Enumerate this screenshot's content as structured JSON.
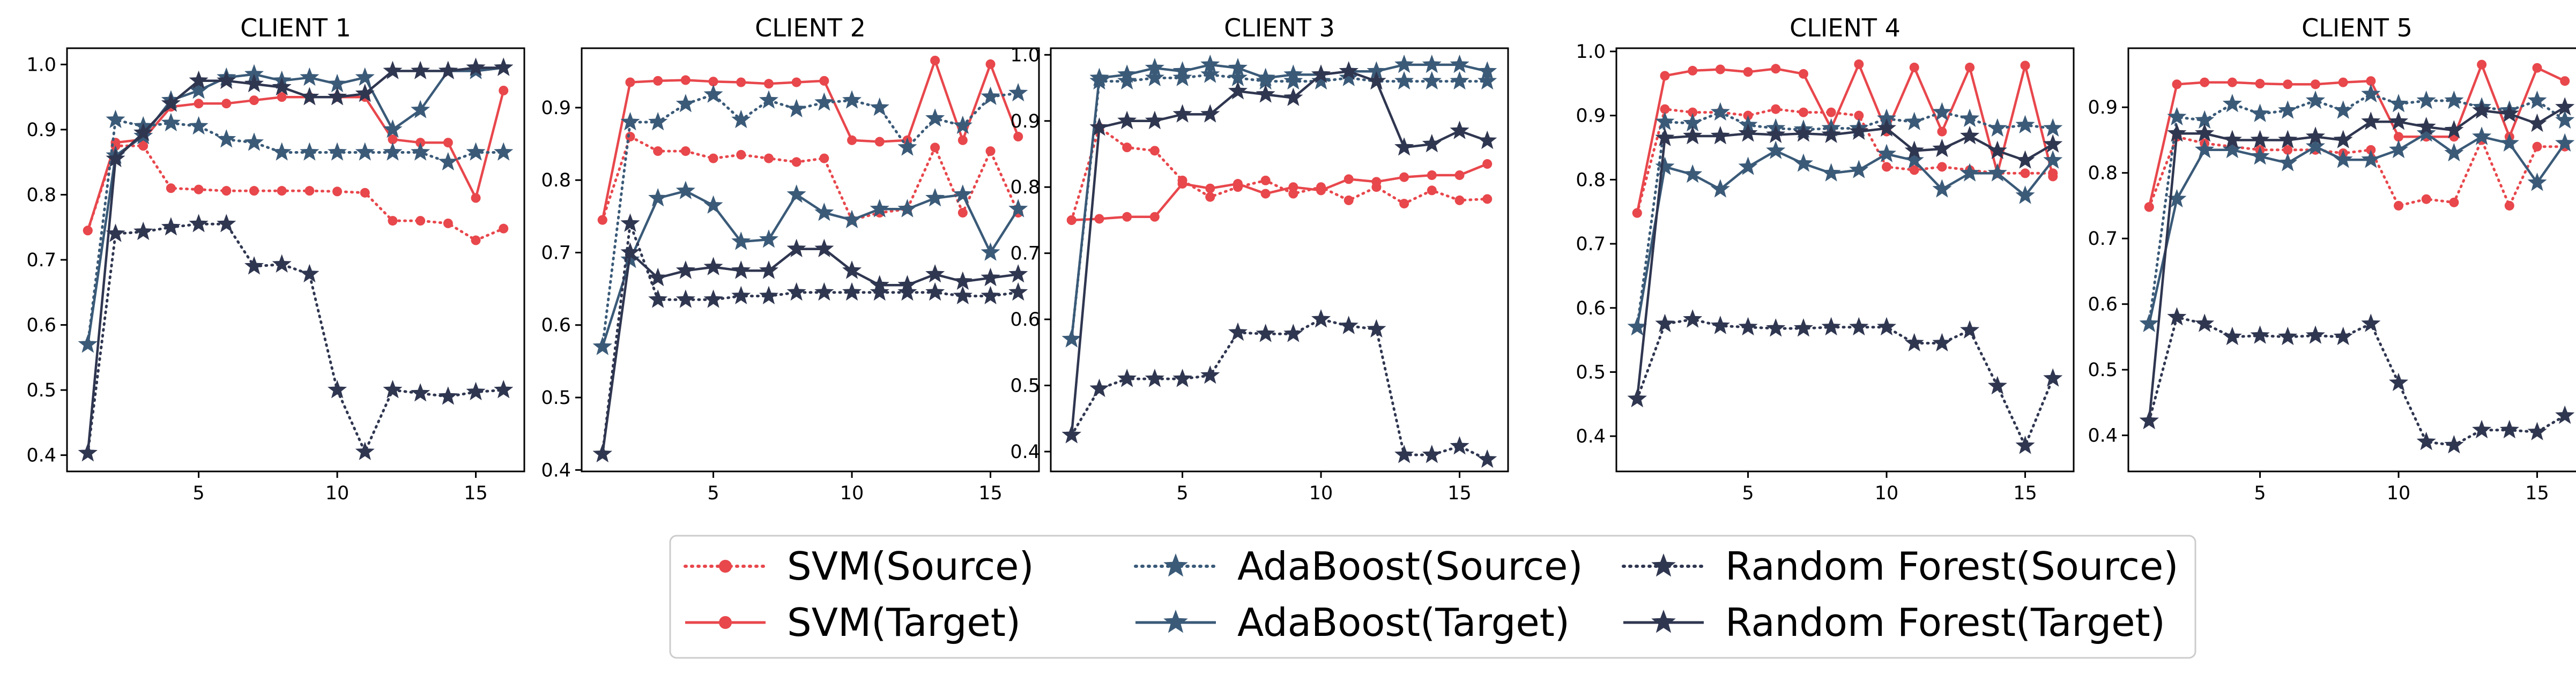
{
  "colors": {
    "svm": "#e8474c",
    "adaboost": "#3a5a78",
    "rf": "#2f3650",
    "legend_border": "#cccccc"
  },
  "chart_data": [
    {
      "type": "line",
      "title": "CLIENT 1",
      "x": [
        1,
        2,
        3,
        4,
        5,
        6,
        7,
        8,
        9,
        10,
        11,
        12,
        13,
        14,
        15,
        16
      ],
      "xticks": [
        5,
        10,
        15
      ],
      "yticks": [
        0.4,
        0.5,
        0.6,
        0.7,
        0.8,
        0.9,
        1.0
      ],
      "ylim": [
        0.375,
        1.025
      ],
      "xlim": [
        0.25,
        16.75
      ],
      "series": [
        {
          "name": "SVM(Source)",
          "model": "svm",
          "style": "dotted",
          "marker": "circle",
          "values": [
            0.745,
            0.875,
            0.875,
            0.81,
            0.808,
            0.806,
            0.806,
            0.806,
            0.806,
            0.805,
            0.803,
            0.76,
            0.76,
            0.756,
            0.73,
            0.748
          ]
        },
        {
          "name": "SVM(Target)",
          "model": "svm",
          "style": "solid",
          "marker": "circle",
          "values": [
            0.745,
            0.88,
            0.885,
            0.935,
            0.94,
            0.94,
            0.945,
            0.95,
            0.95,
            0.95,
            0.95,
            0.885,
            0.88,
            0.88,
            0.795,
            0.96
          ]
        },
        {
          "name": "AdaBoost(Source)",
          "model": "adaboost",
          "style": "dotted",
          "marker": "star",
          "values": [
            0.57,
            0.915,
            0.905,
            0.91,
            0.905,
            0.885,
            0.88,
            0.865,
            0.865,
            0.865,
            0.865,
            0.865,
            0.865,
            0.85,
            0.865,
            0.865
          ]
        },
        {
          "name": "AdaBoost(Target)",
          "model": "adaboost",
          "style": "solid",
          "marker": "star",
          "values": [
            0.57,
            0.86,
            0.89,
            0.945,
            0.96,
            0.98,
            0.985,
            0.975,
            0.98,
            0.97,
            0.98,
            0.9,
            0.93,
            0.99,
            0.99,
            0.995
          ]
        },
        {
          "name": "Random Forest(Source)",
          "model": "rf",
          "style": "dotted",
          "marker": "star",
          "values": [
            0.403,
            0.74,
            0.743,
            0.75,
            0.755,
            0.755,
            0.69,
            0.693,
            0.678,
            0.5,
            0.405,
            0.5,
            0.495,
            0.49,
            0.497,
            0.5
          ]
        },
        {
          "name": "Random Forest(Target)",
          "model": "rf",
          "style": "solid",
          "marker": "star",
          "values": [
            0.403,
            0.855,
            0.895,
            0.94,
            0.975,
            0.975,
            0.97,
            0.965,
            0.95,
            0.95,
            0.955,
            0.99,
            0.99,
            0.99,
            0.995,
            0.995
          ]
        }
      ]
    },
    {
      "type": "line",
      "title": "CLIENT 2",
      "x": [
        1,
        2,
        3,
        4,
        5,
        6,
        7,
        8,
        9,
        10,
        11,
        12,
        13,
        14,
        15,
        16
      ],
      "xticks": [
        5,
        10,
        15
      ],
      "yticks": [
        0.4,
        0.5,
        0.6,
        0.7,
        0.8,
        0.9
      ],
      "ylim": [
        0.398,
        0.982
      ],
      "xlim": [
        0.25,
        16.75
      ],
      "series": [
        {
          "name": "SVM(Source)",
          "model": "svm",
          "style": "dotted",
          "marker": "circle",
          "values": [
            0.745,
            0.86,
            0.84,
            0.84,
            0.83,
            0.835,
            0.83,
            0.825,
            0.83,
            0.745,
            0.755,
            0.76,
            0.845,
            0.755,
            0.84,
            0.755
          ]
        },
        {
          "name": "SVM(Target)",
          "model": "svm",
          "style": "solid",
          "marker": "circle",
          "values": [
            0.745,
            0.935,
            0.937,
            0.938,
            0.936,
            0.935,
            0.933,
            0.935,
            0.937,
            0.855,
            0.853,
            0.855,
            0.965,
            0.855,
            0.96,
            0.86
          ]
        },
        {
          "name": "AdaBoost(Source)",
          "model": "adaboost",
          "style": "dotted",
          "marker": "star",
          "values": [
            0.57,
            0.88,
            0.88,
            0.905,
            0.918,
            0.883,
            0.91,
            0.898,
            0.907,
            0.91,
            0.9,
            0.845,
            0.885,
            0.875,
            0.915,
            0.92
          ]
        },
        {
          "name": "AdaBoost(Target)",
          "model": "adaboost",
          "style": "solid",
          "marker": "star",
          "values": [
            0.57,
            0.69,
            0.775,
            0.785,
            0.765,
            0.715,
            0.718,
            0.78,
            0.755,
            0.745,
            0.76,
            0.76,
            0.775,
            0.78,
            0.7,
            0.76
          ]
        },
        {
          "name": "Random Forest(Source)",
          "model": "rf",
          "style": "dotted",
          "marker": "star",
          "values": [
            0.422,
            0.74,
            0.635,
            0.635,
            0.635,
            0.64,
            0.64,
            0.645,
            0.645,
            0.645,
            0.645,
            0.645,
            0.645,
            0.64,
            0.64,
            0.645
          ]
        },
        {
          "name": "Random Forest(Target)",
          "model": "rf",
          "style": "solid",
          "marker": "star",
          "values": [
            0.422,
            0.7,
            0.665,
            0.675,
            0.68,
            0.675,
            0.675,
            0.705,
            0.705,
            0.675,
            0.655,
            0.655,
            0.67,
            0.66,
            0.665,
            0.67
          ]
        }
      ]
    },
    {
      "type": "line",
      "title": "CLIENT 3",
      "x": [
        1,
        2,
        3,
        4,
        5,
        6,
        7,
        8,
        9,
        10,
        11,
        12,
        13,
        14,
        15,
        16
      ],
      "xticks": [
        5,
        10,
        15
      ],
      "yticks": [
        0.4,
        0.5,
        0.6,
        0.7,
        0.8,
        0.9,
        1.0
      ],
      "ylim": [
        0.37,
        1.01
      ],
      "xlim": [
        0.25,
        16.75
      ],
      "series": [
        {
          "name": "SVM(Source)",
          "model": "svm",
          "style": "dotted",
          "marker": "circle",
          "values": [
            0.75,
            0.89,
            0.86,
            0.855,
            0.81,
            0.785,
            0.8,
            0.81,
            0.79,
            0.8,
            0.78,
            0.8,
            0.775,
            0.795,
            0.78,
            0.782
          ]
        },
        {
          "name": "SVM(Target)",
          "model": "svm",
          "style": "solid",
          "marker": "circle",
          "values": [
            0.75,
            0.752,
            0.755,
            0.755,
            0.805,
            0.798,
            0.805,
            0.79,
            0.8,
            0.795,
            0.812,
            0.808,
            0.815,
            0.818,
            0.818,
            0.835
          ]
        },
        {
          "name": "AdaBoost(Source)",
          "model": "adaboost",
          "style": "dotted",
          "marker": "star",
          "values": [
            0.57,
            0.96,
            0.96,
            0.965,
            0.965,
            0.97,
            0.965,
            0.96,
            0.96,
            0.96,
            0.965,
            0.96,
            0.96,
            0.96,
            0.96,
            0.96
          ]
        },
        {
          "name": "AdaBoost(Target)",
          "model": "adaboost",
          "style": "solid",
          "marker": "star",
          "values": [
            0.57,
            0.965,
            0.97,
            0.98,
            0.975,
            0.985,
            0.98,
            0.965,
            0.97,
            0.97,
            0.975,
            0.975,
            0.985,
            0.985,
            0.985,
            0.975
          ]
        },
        {
          "name": "Random Forest(Source)",
          "model": "rf",
          "style": "dotted",
          "marker": "star",
          "values": [
            0.425,
            0.495,
            0.51,
            0.51,
            0.51,
            0.515,
            0.58,
            0.578,
            0.578,
            0.6,
            0.59,
            0.585,
            0.395,
            0.395,
            0.408,
            0.388
          ]
        },
        {
          "name": "Random Forest(Target)",
          "model": "rf",
          "style": "solid",
          "marker": "star",
          "values": [
            0.425,
            0.89,
            0.9,
            0.9,
            0.91,
            0.91,
            0.945,
            0.94,
            0.935,
            0.97,
            0.975,
            0.96,
            0.86,
            0.865,
            0.885,
            0.87
          ]
        }
      ]
    },
    {
      "type": "line",
      "title": "CLIENT 4",
      "x": [
        1,
        2,
        3,
        4,
        5,
        6,
        7,
        8,
        9,
        10,
        11,
        12,
        13,
        14,
        15,
        16
      ],
      "xticks": [
        5,
        10,
        15
      ],
      "yticks": [
        0.4,
        0.5,
        0.6,
        0.7,
        0.8,
        0.9,
        1.0
      ],
      "ylim": [
        0.345,
        1.005
      ],
      "xlim": [
        0.25,
        16.75
      ],
      "series": [
        {
          "name": "SVM(Source)",
          "model": "svm",
          "style": "dotted",
          "marker": "circle",
          "values": [
            0.748,
            0.91,
            0.905,
            0.905,
            0.9,
            0.91,
            0.905,
            0.905,
            0.9,
            0.82,
            0.815,
            0.82,
            0.815,
            0.81,
            0.81,
            0.81
          ]
        },
        {
          "name": "SVM(Target)",
          "model": "svm",
          "style": "solid",
          "marker": "circle",
          "values": [
            0.748,
            0.962,
            0.97,
            0.972,
            0.968,
            0.973,
            0.965,
            0.88,
            0.98,
            0.875,
            0.975,
            0.875,
            0.975,
            0.81,
            0.978,
            0.805
          ]
        },
        {
          "name": "AdaBoost(Source)",
          "model": "adaboost",
          "style": "dotted",
          "marker": "star",
          "values": [
            0.57,
            0.89,
            0.888,
            0.905,
            0.885,
            0.88,
            0.878,
            0.88,
            0.88,
            0.895,
            0.89,
            0.905,
            0.895,
            0.88,
            0.885,
            0.88
          ]
        },
        {
          "name": "AdaBoost(Target)",
          "model": "adaboost",
          "style": "solid",
          "marker": "star",
          "values": [
            0.57,
            0.82,
            0.808,
            0.785,
            0.82,
            0.845,
            0.825,
            0.81,
            0.815,
            0.84,
            0.83,
            0.785,
            0.81,
            0.81,
            0.775,
            0.83
          ]
        },
        {
          "name": "Random Forest(Source)",
          "model": "rf",
          "style": "dotted",
          "marker": "star",
          "values": [
            0.458,
            0.575,
            0.582,
            0.572,
            0.57,
            0.568,
            0.568,
            0.57,
            0.57,
            0.57,
            0.545,
            0.545,
            0.565,
            0.478,
            0.385,
            0.49
          ]
        },
        {
          "name": "Random Forest(Target)",
          "model": "rf",
          "style": "solid",
          "marker": "star",
          "values": [
            0.458,
            0.865,
            0.868,
            0.868,
            0.872,
            0.87,
            0.872,
            0.87,
            0.875,
            0.88,
            0.845,
            0.848,
            0.868,
            0.845,
            0.83,
            0.855
          ]
        }
      ]
    },
    {
      "type": "line",
      "title": "CLIENT 5",
      "x": [
        1,
        2,
        3,
        4,
        5,
        6,
        7,
        8,
        9,
        10,
        11,
        12,
        13,
        14,
        15,
        16
      ],
      "xticks": [
        5,
        10,
        15
      ],
      "yticks": [
        0.4,
        0.5,
        0.6,
        0.7,
        0.8,
        0.9
      ],
      "ylim": [
        0.345,
        0.99
      ],
      "xlim": [
        0.25,
        16.75
      ],
      "series": [
        {
          "name": "SVM(Source)",
          "model": "svm",
          "style": "dotted",
          "marker": "circle",
          "values": [
            0.748,
            0.855,
            0.845,
            0.84,
            0.835,
            0.835,
            0.835,
            0.83,
            0.835,
            0.75,
            0.76,
            0.755,
            0.85,
            0.75,
            0.84,
            0.84
          ]
        },
        {
          "name": "SVM(Target)",
          "model": "svm",
          "style": "solid",
          "marker": "circle",
          "values": [
            0.748,
            0.935,
            0.938,
            0.938,
            0.936,
            0.935,
            0.935,
            0.938,
            0.94,
            0.855,
            0.855,
            0.855,
            0.965,
            0.855,
            0.96,
            0.94
          ]
        },
        {
          "name": "AdaBoost(Source)",
          "model": "adaboost",
          "style": "dotted",
          "marker": "star",
          "values": [
            0.57,
            0.885,
            0.88,
            0.905,
            0.89,
            0.895,
            0.91,
            0.895,
            0.92,
            0.905,
            0.91,
            0.91,
            0.9,
            0.895,
            0.91,
            0.88
          ]
        },
        {
          "name": "AdaBoost(Target)",
          "model": "adaboost",
          "style": "solid",
          "marker": "star",
          "values": [
            0.57,
            0.76,
            0.835,
            0.835,
            0.825,
            0.815,
            0.84,
            0.82,
            0.82,
            0.835,
            0.86,
            0.83,
            0.855,
            0.845,
            0.785,
            0.845
          ]
        },
        {
          "name": "Random Forest(Source)",
          "model": "rf",
          "style": "dotted",
          "marker": "star",
          "values": [
            0.422,
            0.58,
            0.57,
            0.55,
            0.552,
            0.55,
            0.552,
            0.55,
            0.57,
            0.48,
            0.39,
            0.385,
            0.408,
            0.408,
            0.405,
            0.43
          ]
        },
        {
          "name": "Random Forest(Target)",
          "model": "rf",
          "style": "solid",
          "marker": "star",
          "values": [
            0.422,
            0.86,
            0.86,
            0.85,
            0.85,
            0.85,
            0.855,
            0.85,
            0.878,
            0.878,
            0.87,
            0.865,
            0.895,
            0.89,
            0.875,
            0.9
          ]
        }
      ]
    }
  ],
  "legend": {
    "placement": "bottom-center",
    "columns": [
      [
        "SVM(Source)",
        "SVM(Target)"
      ],
      [
        "AdaBoost(Source)",
        "AdaBoost(Target)"
      ],
      [
        "Random Forest(Source)",
        "Random Forest(Target)"
      ]
    ]
  }
}
